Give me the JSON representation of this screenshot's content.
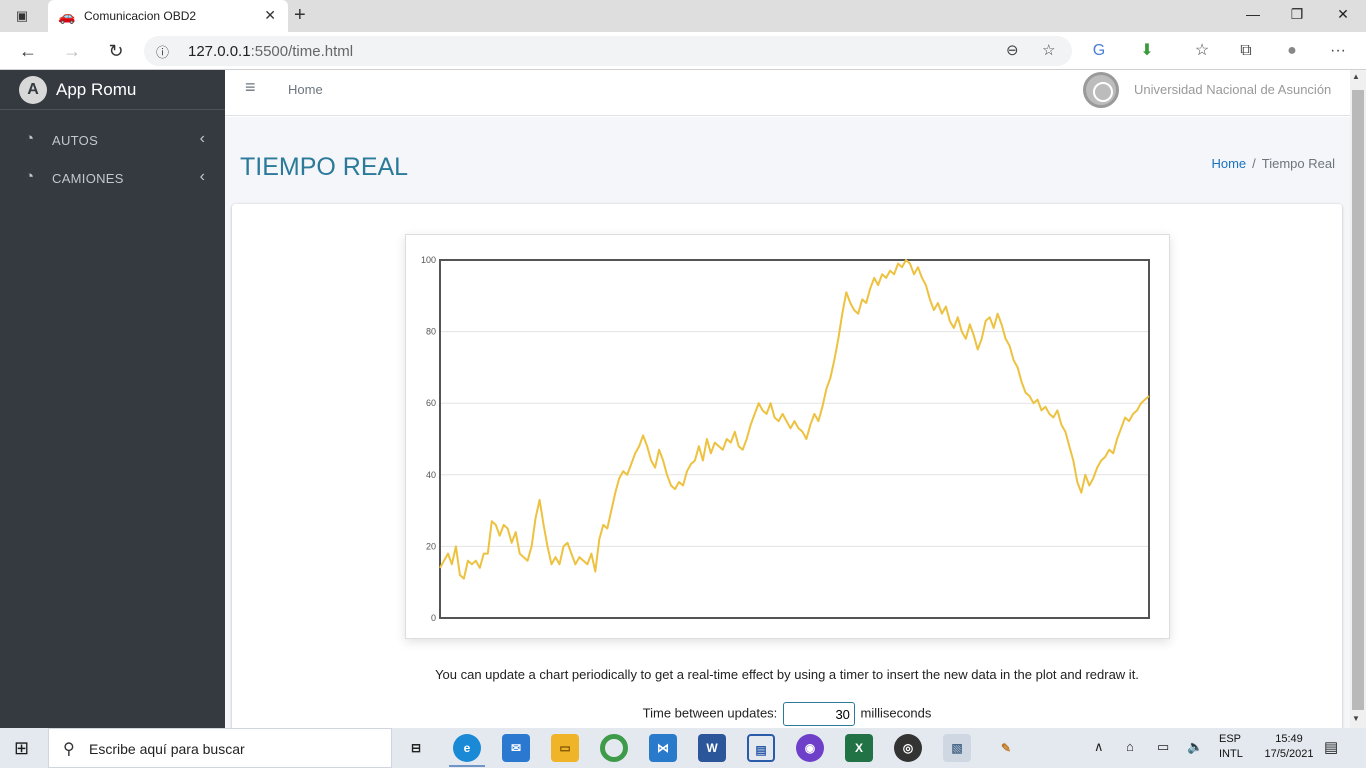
{
  "browser": {
    "tab_title": "Comunicacion OBD2",
    "url_host": "127.0.0.1",
    "url_rest": ":5500/time.html"
  },
  "sidebar": {
    "brand": "App Romu",
    "items": [
      {
        "label": "AUTOS"
      },
      {
        "label": "CAMIONES"
      }
    ]
  },
  "header": {
    "home": "Home",
    "university": "Universidad Nacional de Asunción"
  },
  "page": {
    "title": "TIEMPO REAL",
    "breadcrumb_home": "Home",
    "breadcrumb_sep": "/",
    "breadcrumb_current": "Tiempo Real",
    "description": "You can update a chart periodically to get a real-time effect by using a timer to insert the new data in the plot and redraw it.",
    "update_label": "Time between updates:",
    "update_value": "30",
    "update_unit": "milliseconds"
  },
  "chart_data": {
    "type": "line",
    "ylim": [
      0,
      100
    ],
    "yticks": [
      "0",
      "20",
      "40",
      "60",
      "80",
      "100"
    ],
    "grid": true,
    "color": "#edc240",
    "series": [
      {
        "values": [
          14,
          16,
          18,
          15,
          20,
          12,
          11,
          16,
          15,
          16,
          14,
          18,
          18,
          27,
          26,
          23,
          26,
          25,
          21,
          24,
          18,
          17,
          16,
          20,
          28,
          33,
          26,
          20,
          15,
          17,
          15,
          20,
          21,
          18,
          15,
          17,
          16,
          15,
          18,
          13,
          22,
          26,
          25,
          30,
          35,
          39,
          41,
          40,
          43,
          46,
          48,
          51,
          48,
          44,
          42,
          47,
          44,
          40,
          37,
          36,
          38,
          37,
          41,
          43,
          44,
          48,
          44,
          50,
          46,
          49,
          48,
          47,
          50,
          49,
          52,
          48,
          47,
          50,
          54,
          57,
          60,
          58,
          57,
          60,
          56,
          55,
          57,
          55,
          53,
          55,
          53,
          52,
          50,
          54,
          57,
          55,
          59,
          64,
          67,
          72,
          78,
          85,
          91,
          88,
          86,
          85,
          89,
          88,
          92,
          95,
          93,
          96,
          95,
          97,
          96,
          99,
          98,
          100,
          99,
          96,
          98,
          95,
          93,
          89,
          86,
          88,
          85,
          87,
          83,
          81,
          84,
          80,
          78,
          82,
          79,
          75,
          78,
          83,
          84,
          81,
          85,
          82,
          78,
          76,
          72,
          70,
          66,
          63,
          62,
          60,
          61,
          58,
          59,
          57,
          56,
          58,
          54,
          52,
          48,
          44,
          38,
          35,
          40,
          37,
          39,
          42,
          44,
          45,
          47,
          46,
          50,
          53,
          56,
          55,
          57,
          58,
          60,
          61,
          62
        ]
      }
    ]
  },
  "taskbar": {
    "search_placeholder": "Escribe aquí para buscar",
    "lang_top": "ESP",
    "lang_bottom": "INTL",
    "time": "15:49",
    "date": "17/5/2021"
  },
  "icons": {
    "tab": "car-icon",
    "menu_item": "tachometer-icon"
  }
}
